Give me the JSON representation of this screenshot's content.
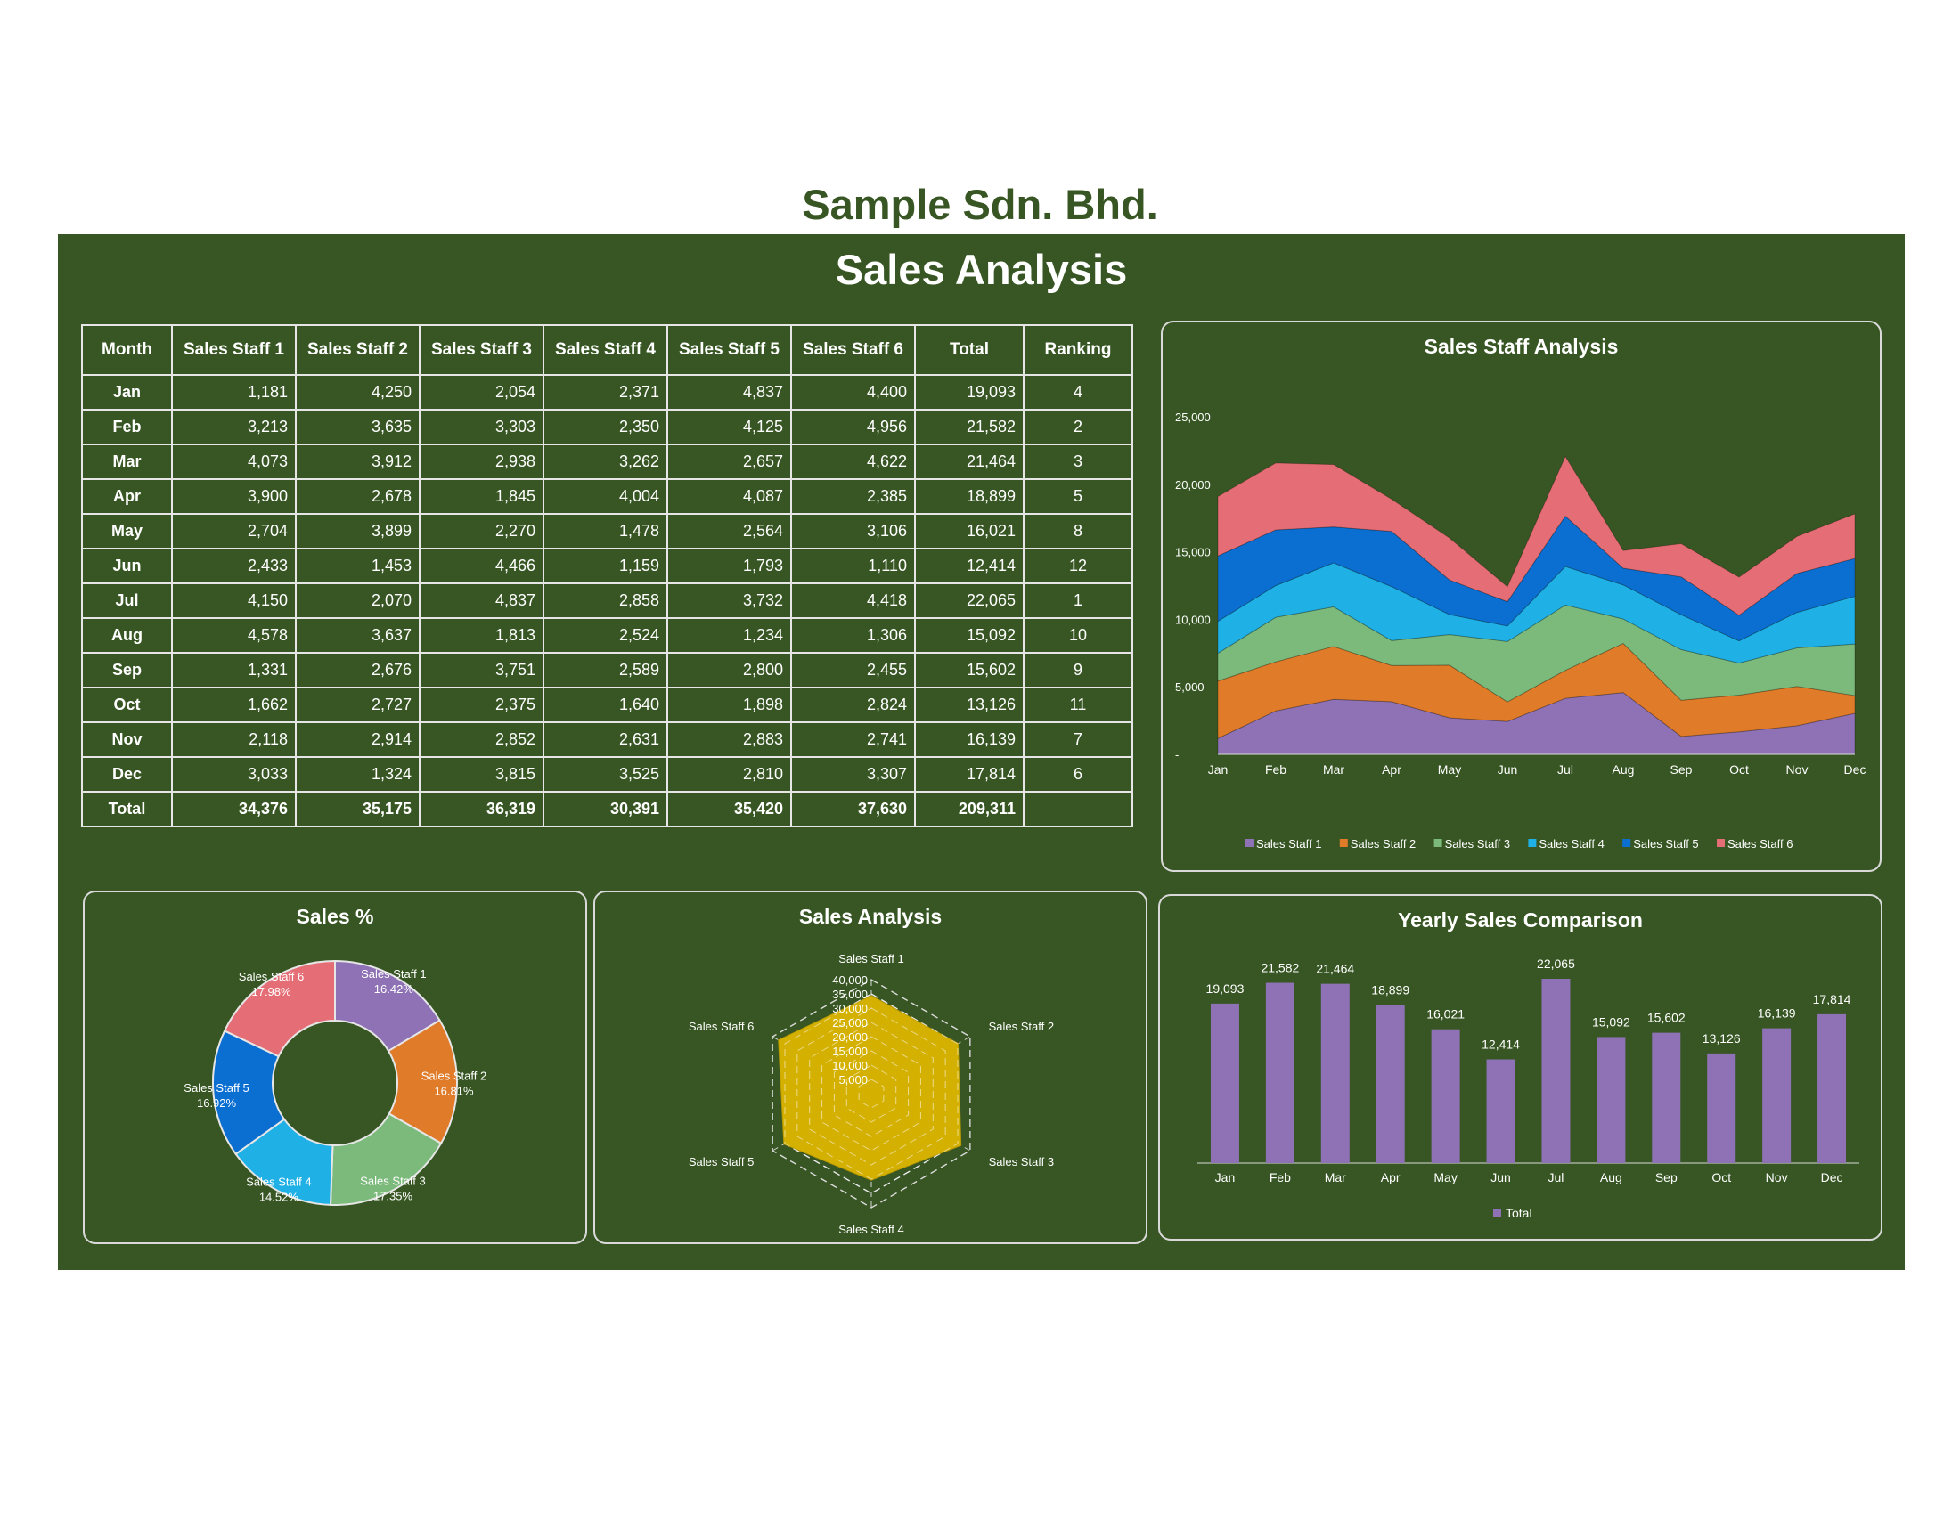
{
  "company": "Sample Sdn. Bhd.",
  "title": "Sales Analysis",
  "table": {
    "headers": [
      "Month",
      "Sales Staff 1",
      "Sales Staff 2",
      "Sales Staff 3",
      "Sales Staff 4",
      "Sales Staff 5",
      "Sales Staff 6",
      "Total",
      "Ranking"
    ],
    "rows": [
      [
        "Jan",
        "1,181",
        "4,250",
        "2,054",
        "2,371",
        "4,837",
        "4,400",
        "19,093",
        "4"
      ],
      [
        "Feb",
        "3,213",
        "3,635",
        "3,303",
        "2,350",
        "4,125",
        "4,956",
        "21,582",
        "2"
      ],
      [
        "Mar",
        "4,073",
        "3,912",
        "2,938",
        "3,262",
        "2,657",
        "4,622",
        "21,464",
        "3"
      ],
      [
        "Apr",
        "3,900",
        "2,678",
        "1,845",
        "4,004",
        "4,087",
        "2,385",
        "18,899",
        "5"
      ],
      [
        "May",
        "2,704",
        "3,899",
        "2,270",
        "1,478",
        "2,564",
        "3,106",
        "16,021",
        "8"
      ],
      [
        "Jun",
        "2,433",
        "1,453",
        "4,466",
        "1,159",
        "1,793",
        "1,110",
        "12,414",
        "12"
      ],
      [
        "Jul",
        "4,150",
        "2,070",
        "4,837",
        "2,858",
        "3,732",
        "4,418",
        "22,065",
        "1"
      ],
      [
        "Aug",
        "4,578",
        "3,637",
        "1,813",
        "2,524",
        "1,234",
        "1,306",
        "15,092",
        "10"
      ],
      [
        "Sep",
        "1,331",
        "2,676",
        "3,751",
        "2,589",
        "2,800",
        "2,455",
        "15,602",
        "9"
      ],
      [
        "Oct",
        "1,662",
        "2,727",
        "2,375",
        "1,640",
        "1,898",
        "2,824",
        "13,126",
        "11"
      ],
      [
        "Nov",
        "2,118",
        "2,914",
        "2,852",
        "2,631",
        "2,883",
        "2,741",
        "16,139",
        "7"
      ],
      [
        "Dec",
        "3,033",
        "1,324",
        "3,815",
        "3,525",
        "2,810",
        "3,307",
        "17,814",
        "6"
      ]
    ],
    "total_row": [
      "Total",
      "34,376",
      "35,175",
      "36,319",
      "30,391",
      "35,420",
      "37,630",
      "209,311",
      ""
    ]
  },
  "colors": {
    "background": "#375623",
    "staff": [
      "#8e72b5",
      "#e07b2a",
      "#7cba7c",
      "#1fb0e6",
      "#0b6fd1",
      "#e56d75"
    ],
    "bar": "#8e72b5",
    "radar": "#d4b000"
  },
  "chart_data": [
    {
      "type": "area",
      "stacked": true,
      "title": "Sales Staff Analysis",
      "categories": [
        "Jan",
        "Feb",
        "Mar",
        "Apr",
        "May",
        "Jun",
        "Jul",
        "Aug",
        "Sep",
        "Oct",
        "Nov",
        "Dec"
      ],
      "yticks": [
        "-",
        "5,000",
        "10,000",
        "15,000",
        "20,000",
        "25,000"
      ],
      "ylim": [
        0,
        25000
      ],
      "legend_position": "bottom",
      "series": [
        {
          "name": "Sales Staff 1",
          "values": [
            1181,
            3213,
            4073,
            3900,
            2704,
            2433,
            4150,
            4578,
            1331,
            1662,
            2118,
            3033
          ]
        },
        {
          "name": "Sales Staff 2",
          "values": [
            4250,
            3635,
            3912,
            2678,
            3899,
            1453,
            2070,
            3637,
            2676,
            2727,
            2914,
            1324
          ]
        },
        {
          "name": "Sales Staff 3",
          "values": [
            2054,
            3303,
            2938,
            1845,
            2270,
            4466,
            4837,
            1813,
            3751,
            2375,
            2852,
            3815
          ]
        },
        {
          "name": "Sales Staff 4",
          "values": [
            2371,
            2350,
            3262,
            4004,
            1478,
            1159,
            2858,
            2524,
            2589,
            1640,
            2631,
            3525
          ]
        },
        {
          "name": "Sales Staff 5",
          "values": [
            4837,
            4125,
            2657,
            4087,
            2564,
            1793,
            3732,
            1234,
            2800,
            1898,
            2883,
            2810
          ]
        },
        {
          "name": "Sales Staff 6",
          "values": [
            4400,
            4956,
            4622,
            2385,
            3106,
            1110,
            4418,
            1306,
            2455,
            2824,
            2741,
            3307
          ]
        }
      ]
    },
    {
      "type": "pie",
      "donut": true,
      "title": "Sales %",
      "labels": [
        "Sales Staff 1",
        "Sales Staff 2",
        "Sales Staff 3",
        "Sales Staff 4",
        "Sales Staff 5",
        "Sales Staff 6"
      ],
      "values": [
        16.42,
        16.81,
        17.35,
        14.52,
        16.92,
        17.98
      ],
      "value_labels": [
        "16.42%",
        "16.81%",
        "17.35%",
        "14.52%",
        "16.92%",
        "17.98%"
      ]
    },
    {
      "type": "radar",
      "title": "Sales Analysis",
      "labels": [
        "Sales Staff 1",
        "Sales Staff 2",
        "Sales Staff 3",
        "Sales Staff 4",
        "Sales Staff 5",
        "Sales Staff 6"
      ],
      "values": [
        34376,
        35175,
        36319,
        30391,
        35420,
        37630
      ],
      "rticks": [
        "-",
        "5,000",
        "10,000",
        "15,000",
        "20,000",
        "25,000",
        "30,000",
        "35,000",
        "40,000"
      ],
      "rlim": [
        0,
        40000
      ]
    },
    {
      "type": "bar",
      "title": "Yearly Sales Comparison",
      "categories": [
        "Jan",
        "Feb",
        "Mar",
        "Apr",
        "May",
        "Jun",
        "Jul",
        "Aug",
        "Sep",
        "Oct",
        "Nov",
        "Dec"
      ],
      "values": [
        19093,
        21582,
        21464,
        18899,
        16021,
        12414,
        22065,
        15092,
        15602,
        13126,
        16139,
        17814
      ],
      "value_labels": [
        "19,093",
        "21,582",
        "21,464",
        "18,899",
        "16,021",
        "12,414",
        "22,065",
        "15,092",
        "15,602",
        "13,126",
        "16,139",
        "17,814"
      ],
      "legend": [
        "Total"
      ],
      "legend_position": "bottom",
      "ylim": [
        0,
        25000
      ]
    }
  ]
}
